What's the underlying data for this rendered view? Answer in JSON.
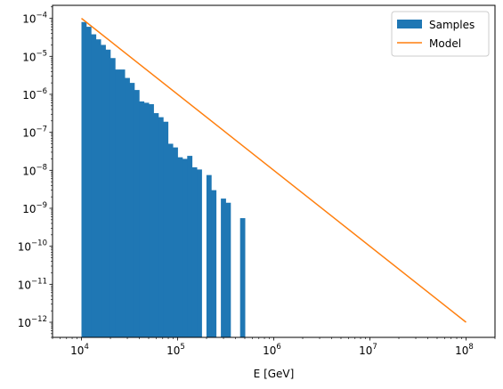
{
  "chart_data": {
    "type": "histogram",
    "xlabel": "E [GeV]",
    "ylabel": "",
    "xscale": "log",
    "yscale": "log",
    "xlim": [
      5000.0,
      200000000.0
    ],
    "ylim": [
      4e-13,
      0.00022
    ],
    "legend": {
      "placement": "top-right",
      "entries": [
        "Samples",
        "Model"
      ]
    },
    "colors": {
      "samples": "#1f77b4",
      "model": "#ff7f0e"
    },
    "x_ticks": [
      {
        "value": 10000.0,
        "base": "10",
        "exp": "4"
      },
      {
        "value": 100000.0,
        "base": "10",
        "exp": "5"
      },
      {
        "value": 1000000.0,
        "base": "10",
        "exp": "6"
      },
      {
        "value": 10000000.0,
        "base": "10",
        "exp": "7"
      },
      {
        "value": 100000000.0,
        "base": "10",
        "exp": "8"
      }
    ],
    "y_ticks": [
      {
        "value": 1e-12,
        "base": "10",
        "exp": "−12"
      },
      {
        "value": 1e-11,
        "base": "10",
        "exp": "−11"
      },
      {
        "value": 1e-10,
        "base": "10",
        "exp": "−10"
      },
      {
        "value": 1e-09,
        "base": "10",
        "exp": "−9"
      },
      {
        "value": 1e-08,
        "base": "10",
        "exp": "−8"
      },
      {
        "value": 1e-07,
        "base": "10",
        "exp": "−7"
      },
      {
        "value": 1e-06,
        "base": "10",
        "exp": "−6"
      },
      {
        "value": 1e-05,
        "base": "10",
        "exp": "−5"
      },
      {
        "value": 0.0001,
        "base": "10",
        "exp": "−4"
      }
    ],
    "series": [
      {
        "name": "Samples",
        "type": "histogram",
        "bin_log10_range": [
          4,
          8
        ],
        "bin_count": 80,
        "bars": [
          {
            "bin": 0,
            "value": 8e-05
          },
          {
            "bin": 1,
            "value": 6e-05
          },
          {
            "bin": 2,
            "value": 3.8e-05
          },
          {
            "bin": 3,
            "value": 2.8e-05
          },
          {
            "bin": 4,
            "value": 2e-05
          },
          {
            "bin": 5,
            "value": 1.5e-05
          },
          {
            "bin": 6,
            "value": 9e-06
          },
          {
            "bin": 7,
            "value": 4.5e-06
          },
          {
            "bin": 8,
            "value": 4.5e-06
          },
          {
            "bin": 9,
            "value": 2.7e-06
          },
          {
            "bin": 10,
            "value": 2e-06
          },
          {
            "bin": 11,
            "value": 1.3e-06
          },
          {
            "bin": 12,
            "value": 6.5e-07
          },
          {
            "bin": 13,
            "value": 6e-07
          },
          {
            "bin": 14,
            "value": 5.5e-07
          },
          {
            "bin": 15,
            "value": 3.2e-07
          },
          {
            "bin": 16,
            "value": 2.5e-07
          },
          {
            "bin": 17,
            "value": 1.9e-07
          },
          {
            "bin": 18,
            "value": 5e-08
          },
          {
            "bin": 19,
            "value": 4e-08
          },
          {
            "bin": 20,
            "value": 2.2e-08
          },
          {
            "bin": 21,
            "value": 2e-08
          },
          {
            "bin": 22,
            "value": 2.4e-08
          },
          {
            "bin": 23,
            "value": 1.2e-08
          },
          {
            "bin": 24,
            "value": 1.05e-08
          },
          {
            "bin": 26,
            "value": 7.5e-09
          },
          {
            "bin": 27,
            "value": 3e-09
          },
          {
            "bin": 29,
            "value": 1.8e-09
          },
          {
            "bin": 30,
            "value": 1.4e-09
          },
          {
            "bin": 33,
            "value": 5.5e-10
          }
        ]
      },
      {
        "name": "Model",
        "type": "line",
        "x": [
          10000.0,
          100000000.0
        ],
        "y": [
          0.0001,
          1e-12
        ]
      }
    ]
  }
}
